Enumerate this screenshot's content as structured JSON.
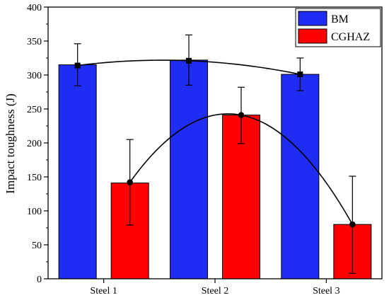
{
  "chart_data": {
    "type": "bar",
    "xlabel": "",
    "ylabel": "Impact toughness (J)",
    "ylim": [
      0,
      400
    ],
    "yticks": [
      0,
      50,
      100,
      150,
      200,
      250,
      300,
      350,
      400
    ],
    "categories": [
      "Steel 1",
      "Steel 2",
      "Steel 3"
    ],
    "grid": false,
    "legend_position": "top-right",
    "series": [
      {
        "name": "BM",
        "color": "#1f2df2",
        "values": [
          315,
          322,
          301
        ],
        "points": [
          314,
          321,
          301
        ],
        "error_low": [
          284,
          285,
          277
        ],
        "error_high": [
          346,
          359,
          325
        ]
      },
      {
        "name": "CGHAZ",
        "color": "#ff0000",
        "values": [
          141,
          241,
          80
        ],
        "points": [
          142,
          241,
          80
        ],
        "error_low": [
          79,
          199,
          8
        ],
        "error_high": [
          205,
          282,
          151
        ]
      }
    ]
  }
}
